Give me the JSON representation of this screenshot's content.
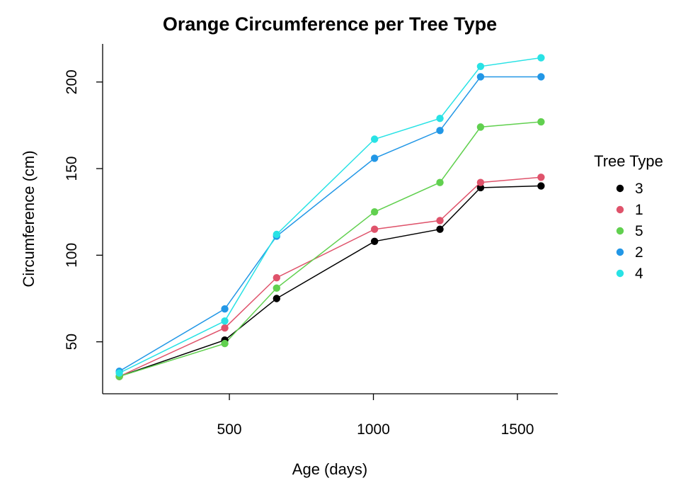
{
  "chart_data": {
    "type": "line",
    "title": "Orange Circumference per Tree Type",
    "xlabel": "Age (days)",
    "ylabel": "Circumference (cm)",
    "x": [
      118,
      484,
      664,
      1004,
      1231,
      1372,
      1582
    ],
    "xlim": [
      60,
      1640
    ],
    "ylim": [
      20,
      222
    ],
    "xticks": [
      500,
      1000,
      1500
    ],
    "yticks": [
      50,
      100,
      150,
      200
    ],
    "grid": false,
    "legend": {
      "title": "Tree Type",
      "position": "right"
    },
    "series": [
      {
        "name": "3",
        "color": "#000000",
        "values": [
          30,
          51,
          75,
          108,
          115,
          139,
          140
        ]
      },
      {
        "name": "1",
        "color": "#DF536B",
        "values": [
          30,
          58,
          87,
          115,
          120,
          142,
          145
        ]
      },
      {
        "name": "5",
        "color": "#61D04F",
        "values": [
          30,
          49,
          81,
          125,
          142,
          174,
          177
        ]
      },
      {
        "name": "2",
        "color": "#2297E6",
        "values": [
          33,
          69,
          111,
          156,
          172,
          203,
          203
        ]
      },
      {
        "name": "4",
        "color": "#28E2E5",
        "values": [
          32,
          62,
          112,
          167,
          179,
          209,
          214
        ]
      }
    ]
  }
}
